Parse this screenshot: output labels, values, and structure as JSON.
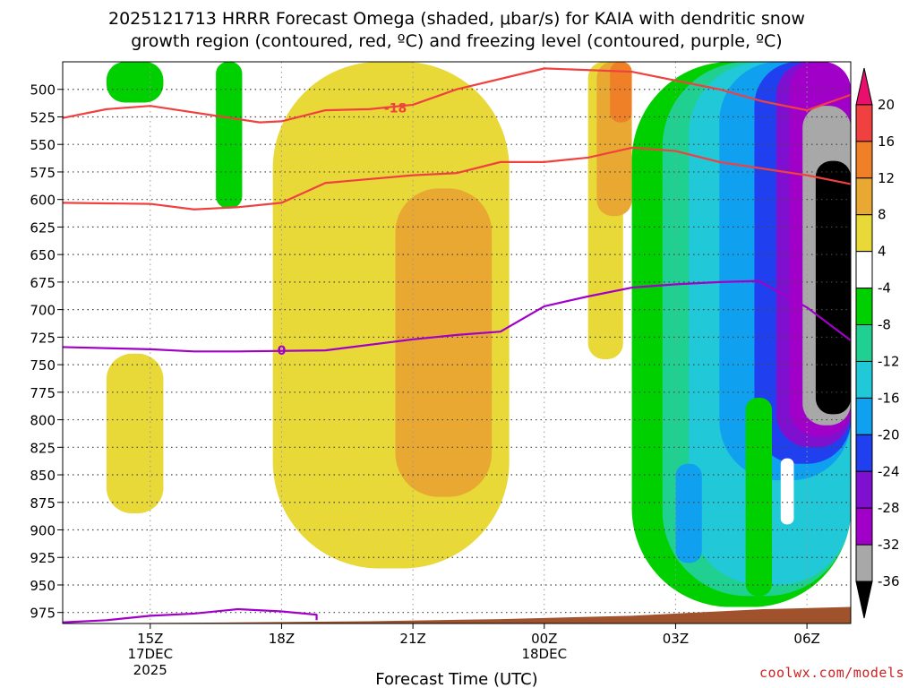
{
  "chart_data": {
    "type": "heatmap",
    "title_line1": "2025121713 HRRR Forecast Omega (shaded, μbar/s) for KAIA with dendritic snow",
    "title_line2": "growth region (contoured, red, ºC) and freezing level (contoured, purple, ºC)",
    "xlabel": "Forecast Time (UTC)",
    "credit": "coolwx.com/models",
    "x_range_hours": [
      -1.0,
      17.0
    ],
    "y_range_hpa": [
      475,
      985
    ],
    "x_ticks": [
      {
        "hour": 1,
        "label": "15Z",
        "sub1": "17DEC",
        "sub2": "2025"
      },
      {
        "hour": 4,
        "label": "18Z",
        "sub1": "",
        "sub2": ""
      },
      {
        "hour": 7,
        "label": "21Z",
        "sub1": "",
        "sub2": ""
      },
      {
        "hour": 10,
        "label": "00Z",
        "sub1": "18DEC",
        "sub2": ""
      },
      {
        "hour": 13,
        "label": "03Z",
        "sub1": "",
        "sub2": ""
      },
      {
        "hour": 16,
        "label": "06Z",
        "sub1": "",
        "sub2": ""
      }
    ],
    "y_ticks": [
      {
        "p": 500,
        "label": "500"
      },
      {
        "p": 525,
        "label": "525"
      },
      {
        "p": 550,
        "label": "550"
      },
      {
        "p": 575,
        "label": "575"
      },
      {
        "p": 600,
        "label": "600"
      },
      {
        "p": 625,
        "label": "625"
      },
      {
        "p": 650,
        "label": "650"
      },
      {
        "p": 675,
        "label": "675"
      },
      {
        "p": 700,
        "label": "700"
      },
      {
        "p": 725,
        "label": "725"
      },
      {
        "p": 750,
        "label": "750"
      },
      {
        "p": 775,
        "label": "775"
      },
      {
        "p": 800,
        "label": "800"
      },
      {
        "p": 825,
        "label": "825"
      },
      {
        "p": 850,
        "label": "850"
      },
      {
        "p": 875,
        "label": "875"
      },
      {
        "p": 900,
        "label": "900"
      },
      {
        "p": 925,
        "label": "925"
      },
      {
        "p": 950,
        "label": "950"
      },
      {
        "p": 975,
        "label": "975"
      }
    ],
    "colorbar": {
      "labels": [
        "20",
        "16",
        "12",
        "8",
        "4",
        "-4",
        "-8",
        "-12",
        "-16",
        "-20",
        "-24",
        "-28",
        "-32",
        "-36"
      ],
      "colors_top_to_bottom": [
        "#e8106c",
        "#f04040",
        "#f08028",
        "#e8a832",
        "#e8d838",
        "#ffffff",
        "#00d000",
        "#20d090",
        "#20c8d8",
        "#10a0f0",
        "#2040f0",
        "#8010d0",
        "#a000c8",
        "#a8a8a8",
        "#000000"
      ]
    },
    "shaded_regions": [
      {
        "name": "green-top-left",
        "value_range": "-8 to -4",
        "color": "#00d000",
        "hours": [
          -0.0,
          1.3
        ],
        "pressure_hpa": [
          475,
          512
        ]
      },
      {
        "name": "green-column",
        "value_range": "-8 to -4",
        "color": "#00d000",
        "hours": [
          2.5,
          3.1
        ],
        "pressure_hpa": [
          475,
          608
        ]
      },
      {
        "name": "yellow-left-low",
        "value_range": "4 to 8",
        "color": "#e8d838",
        "hours": [
          0.0,
          1.3
        ],
        "pressure_hpa": [
          740,
          885
        ]
      },
      {
        "name": "yellow-main",
        "value_range": "4 to 8",
        "color": "#e8d838",
        "hours": [
          3.8,
          9.2
        ],
        "pressure_hpa": [
          475,
          935
        ]
      },
      {
        "name": "orange-main",
        "value_range": "8 to 12",
        "color": "#e8a832",
        "hours": [
          6.6,
          8.8
        ],
        "pressure_hpa": [
          590,
          870
        ]
      },
      {
        "name": "yellow-upper-right",
        "value_range": "4 to 8",
        "color": "#e8d838",
        "hours": [
          11.0,
          11.8
        ],
        "pressure_hpa": [
          475,
          745
        ]
      },
      {
        "name": "orange-upper-right",
        "value_range": "8 to 12",
        "color": "#e8a832",
        "hours": [
          11.2,
          12.0
        ],
        "pressure_hpa": [
          475,
          615
        ]
      },
      {
        "name": "dark-orange-upper-right",
        "value_range": "12 to 16",
        "color": "#f08028",
        "hours": [
          11.5,
          12.0
        ],
        "pressure_hpa": [
          475,
          530
        ]
      },
      {
        "name": "green-right",
        "value_range": "-8 to -4",
        "color": "#00d000",
        "hours": [
          12.0,
          17.0
        ],
        "pressure_hpa": [
          475,
          970
        ]
      },
      {
        "name": "teal-right",
        "value_range": "-12 to -8",
        "color": "#20d090",
        "hours": [
          12.7,
          17.0
        ],
        "pressure_hpa": [
          475,
          960
        ]
      },
      {
        "name": "cyan-right",
        "value_range": "-16 to -12",
        "color": "#20c8d8",
        "hours": [
          13.3,
          17.0
        ],
        "pressure_hpa": [
          475,
          950
        ]
      },
      {
        "name": "light-blue-right",
        "value_range": "-20 to -16",
        "color": "#10a0f0",
        "hours": [
          14.0,
          17.0
        ],
        "pressure_hpa": [
          475,
          855
        ]
      },
      {
        "name": "blue-right",
        "value_range": "-24 to -20",
        "color": "#2040f0",
        "hours": [
          14.8,
          17.0
        ],
        "pressure_hpa": [
          475,
          840
        ]
      },
      {
        "name": "purple-right",
        "value_range": "-28 to -24",
        "color": "#8010d0",
        "hours": [
          15.3,
          17.0
        ],
        "pressure_hpa": [
          475,
          825
        ]
      },
      {
        "name": "violet-right",
        "value_range": "-32 to -28",
        "color": "#a000c8",
        "hours": [
          15.6,
          17.0
        ],
        "pressure_hpa": [
          475,
          815
        ]
      },
      {
        "name": "gray-right",
        "value_range": "-36 to -32",
        "color": "#a8a8a8",
        "hours": [
          15.9,
          17.0
        ],
        "pressure_hpa": [
          515,
          805
        ]
      },
      {
        "name": "black-right",
        "value_range": "< -36",
        "color": "#000000",
        "hours": [
          16.2,
          17.0
        ],
        "pressure_hpa": [
          565,
          795
        ]
      },
      {
        "name": "blue-lower-pocket",
        "value_range": "-20 to -16",
        "color": "#10a0f0",
        "hours": [
          13.0,
          13.6
        ],
        "pressure_hpa": [
          840,
          930
        ]
      },
      {
        "name": "green-pocket",
        "value_range": "-8 to -4",
        "color": "#00d000",
        "hours": [
          14.6,
          15.2
        ],
        "pressure_hpa": [
          780,
          960
        ]
      },
      {
        "name": "white-pocket",
        "value_range": "-4 to 4",
        "color": "#ffffff",
        "hours": [
          15.4,
          15.7
        ],
        "pressure_hpa": [
          835,
          895
        ]
      }
    ],
    "contours": [
      {
        "name": "dgz-top-18c",
        "label": "-18",
        "color": "#f04040",
        "points": [
          [
            -1.0,
            526
          ],
          [
            0.0,
            518
          ],
          [
            1.0,
            515
          ],
          [
            2.5,
            524
          ],
          [
            3.5,
            530
          ],
          [
            4.0,
            529
          ],
          [
            5.0,
            519
          ],
          [
            6.0,
            518
          ],
          [
            7.0,
            514
          ],
          [
            8.0,
            500
          ],
          [
            10.0,
            481
          ],
          [
            12.0,
            484
          ],
          [
            14.0,
            500
          ],
          [
            15.0,
            511
          ],
          [
            16.0,
            519
          ],
          [
            17.0,
            505
          ]
        ]
      },
      {
        "name": "dgz-bottom",
        "label": "",
        "color": "#f04040",
        "points": [
          [
            -1.0,
            603
          ],
          [
            1.0,
            604
          ],
          [
            2.0,
            609
          ],
          [
            3.0,
            607
          ],
          [
            4.0,
            603
          ],
          [
            5.0,
            585
          ],
          [
            7.0,
            578
          ],
          [
            8.0,
            576
          ],
          [
            9.0,
            566
          ],
          [
            10.0,
            566
          ],
          [
            11.0,
            562
          ],
          [
            12.0,
            553
          ],
          [
            13.0,
            556
          ],
          [
            14.0,
            566
          ],
          [
            16.0,
            578
          ],
          [
            17.0,
            586
          ]
        ]
      },
      {
        "name": "freezing-level-0c",
        "label": "0",
        "color": "#a000c8",
        "points": [
          [
            -1.0,
            734
          ],
          [
            1.0,
            736
          ],
          [
            2.0,
            738
          ],
          [
            3.0,
            738
          ],
          [
            5.0,
            737
          ],
          [
            7.0,
            727
          ],
          [
            8.0,
            723
          ],
          [
            9.0,
            720
          ],
          [
            10.0,
            697
          ],
          [
            11.0,
            688
          ],
          [
            12.0,
            680
          ],
          [
            13.0,
            677
          ],
          [
            14.0,
            675
          ],
          [
            14.9,
            674
          ],
          [
            16.0,
            698
          ],
          [
            17.0,
            728
          ]
        ]
      },
      {
        "name": "freezing-level-near-surface",
        "label": "",
        "color": "#a000c8",
        "points": [
          [
            -1.0,
            984
          ],
          [
            0.0,
            982
          ],
          [
            1.0,
            978
          ],
          [
            2.0,
            976
          ],
          [
            3.0,
            972
          ],
          [
            4.0,
            974
          ],
          [
            4.8,
            977
          ],
          [
            4.8,
            982
          ]
        ]
      }
    ],
    "terrain": {
      "name": "surface-terrain",
      "color": "#a0522d",
      "points": [
        [
          -1.0,
          985
        ],
        [
          3.0,
          984
        ],
        [
          6.0,
          983
        ],
        [
          9.0,
          981
        ],
        [
          12.0,
          978
        ],
        [
          15.0,
          972
        ],
        [
          17.0,
          970
        ]
      ]
    }
  }
}
